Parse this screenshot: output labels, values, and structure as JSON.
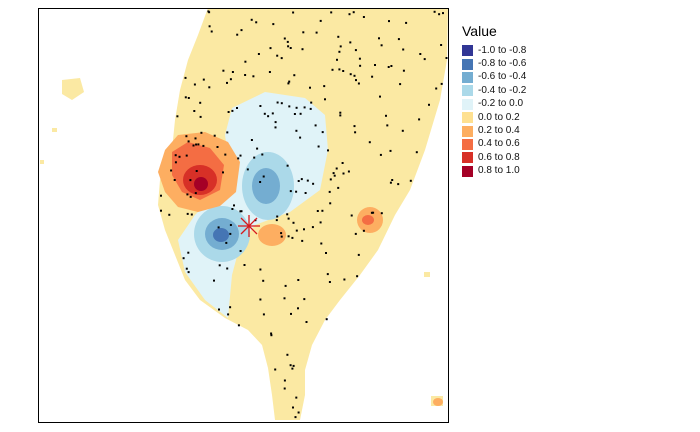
{
  "legend": {
    "title": "Value",
    "items": [
      {
        "label": "-1.0 to -0.8",
        "color": "#313695"
      },
      {
        "label": "-0.8 to -0.6",
        "color": "#4575b4"
      },
      {
        "label": "-0.6 to -0.4",
        "color": "#74add1"
      },
      {
        "label": "-0.4 to -0.2",
        "color": "#abd9e9"
      },
      {
        "label": "-0.2 to 0.0",
        "color": "#e0f3f8"
      },
      {
        "label": "0.0 to 0.2",
        "color": "#fee090"
      },
      {
        "label": "0.2 to 0.4",
        "color": "#fdae61"
      },
      {
        "label": "0.4 to 0.6",
        "color": "#f46d43"
      },
      {
        "label": "0.6 to 0.8",
        "color": "#d73027"
      },
      {
        "label": "0.8 to 1.0",
        "color": "#a50026"
      }
    ]
  },
  "map": {
    "land_color": "#fbe9a3",
    "background_color": "#ffffff",
    "station_color": "#000000",
    "center_marker_color": "#d7191c",
    "center_marker_icon": "asterisk-marker-icon"
  }
}
